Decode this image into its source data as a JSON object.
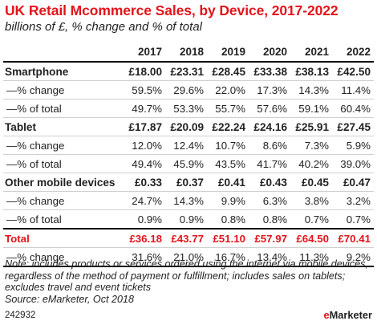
{
  "title": "UK Retail Mcommerce Sales, by Device, 2017-2022",
  "subtitle": "billions of £, % change and % of total",
  "note": "Note: includes products or services ordered using the internet via mobile devices, regardless of the method of payment or fulfillment; includes sales on tablets; excludes travel and event tickets",
  "source": "Source: eMarketer, Oct 2018",
  "chart_id": "242932",
  "logo": {
    "e": "e",
    "rest": "Marketer"
  },
  "colors": {
    "accent": "#e3141b",
    "text": "#222222"
  },
  "chart_data": {
    "type": "table",
    "title": "UK Retail Mcommerce Sales, by Device, 2017-2022",
    "subtitle": "billions of £, % change and % of total",
    "columns": [
      "2017",
      "2018",
      "2019",
      "2020",
      "2021",
      "2022"
    ],
    "rows": [
      {
        "kind": "head",
        "label": "Smartphone",
        "values": [
          "£18.00",
          "£23.31",
          "£28.45",
          "£33.38",
          "£38.13",
          "£42.50"
        ]
      },
      {
        "kind": "sub",
        "label": "—% change",
        "values": [
          "59.5%",
          "29.6%",
          "22.0%",
          "17.3%",
          "14.3%",
          "11.4%"
        ]
      },
      {
        "kind": "sub",
        "label": "—% of total",
        "values": [
          "49.7%",
          "53.3%",
          "55.7%",
          "57.6%",
          "59.1%",
          "60.4%"
        ]
      },
      {
        "kind": "head",
        "label": "Tablet",
        "values": [
          "£17.87",
          "£20.09",
          "£22.24",
          "£24.16",
          "£25.91",
          "£27.45"
        ]
      },
      {
        "kind": "sub",
        "label": "—% change",
        "values": [
          "12.0%",
          "12.4%",
          "10.7%",
          "8.6%",
          "7.3%",
          "5.9%"
        ]
      },
      {
        "kind": "sub",
        "label": "—% of total",
        "values": [
          "49.4%",
          "45.9%",
          "43.5%",
          "41.7%",
          "40.2%",
          "39.0%"
        ]
      },
      {
        "kind": "head",
        "label": "Other mobile devices",
        "values": [
          "£0.33",
          "£0.37",
          "£0.41",
          "£0.43",
          "£0.45",
          "£0.47"
        ]
      },
      {
        "kind": "sub",
        "label": "—% change",
        "values": [
          "24.7%",
          "14.3%",
          "9.9%",
          "6.3%",
          "3.8%",
          "3.2%"
        ]
      },
      {
        "kind": "sub",
        "label": "—% of total",
        "values": [
          "0.9%",
          "0.9%",
          "0.8%",
          "0.8%",
          "0.7%",
          "0.7%"
        ]
      },
      {
        "kind": "total",
        "label": "Total",
        "values": [
          "£36.18",
          "£43.77",
          "£51.10",
          "£57.97",
          "£64.50",
          "£70.41"
        ]
      },
      {
        "kind": "sub",
        "label": "—% change",
        "values": [
          "31.6%",
          "21.0%",
          "16.7%",
          "13.4%",
          "11.3%",
          "9.2%"
        ]
      }
    ]
  }
}
